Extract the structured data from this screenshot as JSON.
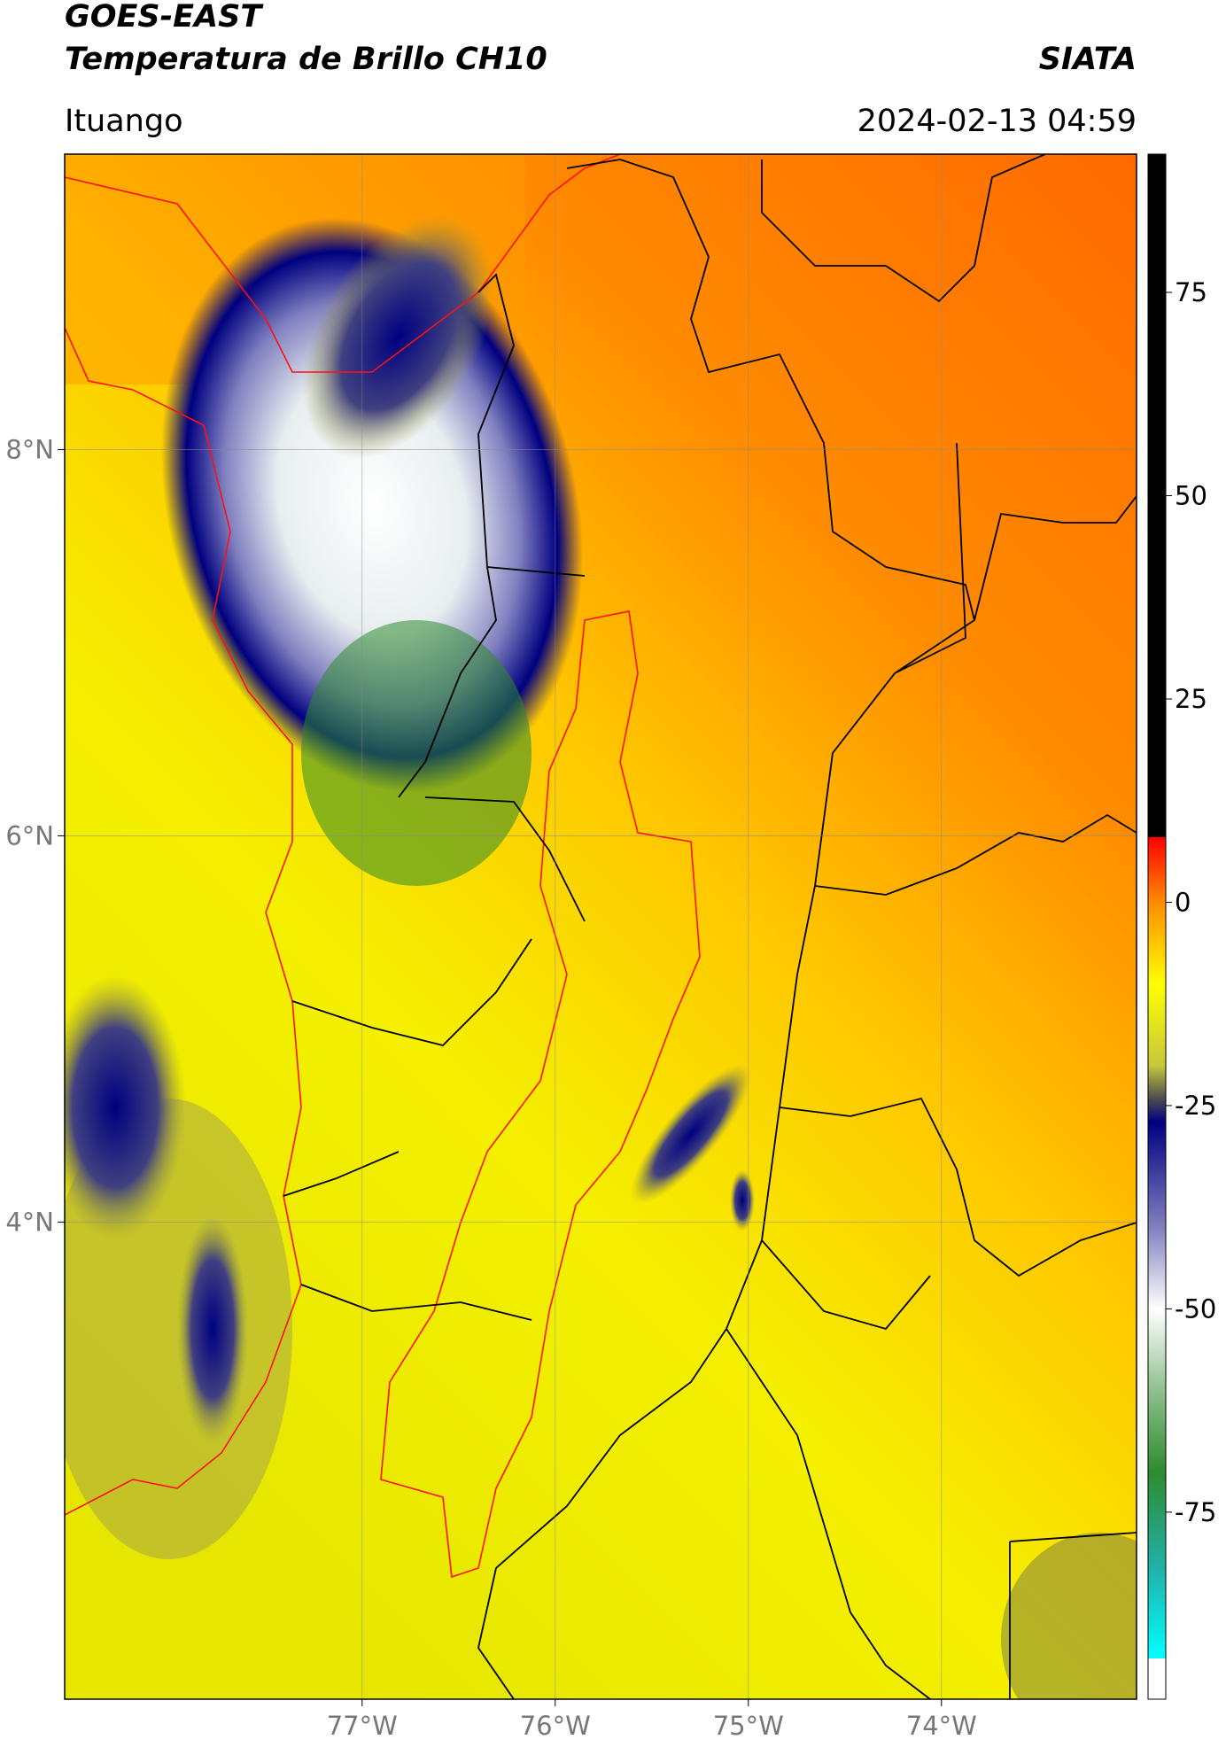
{
  "header": {
    "title": "GOES-EAST",
    "subtitle": "Temperatura de Brillo CH10",
    "brand": "SIATA",
    "location": "Ituango",
    "datetime": "2024-02-13 04:59"
  },
  "map": {
    "xlim": [
      -78.54,
      -72.99
    ],
    "ylim": [
      1.53,
      9.53
    ],
    "xticks": [
      {
        "value": -77,
        "label": "77°W"
      },
      {
        "value": -76,
        "label": "76°W"
      },
      {
        "value": -75,
        "label": "75°W"
      },
      {
        "value": -74,
        "label": "74°W"
      }
    ],
    "yticks": [
      {
        "value": 8,
        "label": "8°N"
      },
      {
        "value": 6,
        "label": "6°N"
      },
      {
        "value": 4,
        "label": "4°N"
      }
    ],
    "grid": true
  },
  "colorbar": {
    "lim": [
      -98,
      92
    ],
    "ticks": [
      75,
      50,
      25,
      0,
      -25,
      -50,
      -75
    ],
    "stops": [
      {
        "value": 92,
        "color": "#000000"
      },
      {
        "value": 8,
        "color": "#000000"
      },
      {
        "value": 8,
        "color": "#ff0000"
      },
      {
        "value": 0,
        "color": "#ff8c00"
      },
      {
        "value": -10,
        "color": "#ffff00"
      },
      {
        "value": -20,
        "color": "#c8c83c"
      },
      {
        "value": -24,
        "color": "#505050"
      },
      {
        "value": -27,
        "color": "#000080"
      },
      {
        "value": -40,
        "color": "#8080c0"
      },
      {
        "value": -50,
        "color": "#ffffff"
      },
      {
        "value": -60,
        "color": "#90c090"
      },
      {
        "value": -70,
        "color": "#2e8b2e"
      },
      {
        "value": -82,
        "color": "#20b2aa"
      },
      {
        "value": -93,
        "color": "#00ffff"
      },
      {
        "value": -93,
        "color": "#ffffff"
      },
      {
        "value": -98,
        "color": "#ffffff"
      }
    ]
  }
}
